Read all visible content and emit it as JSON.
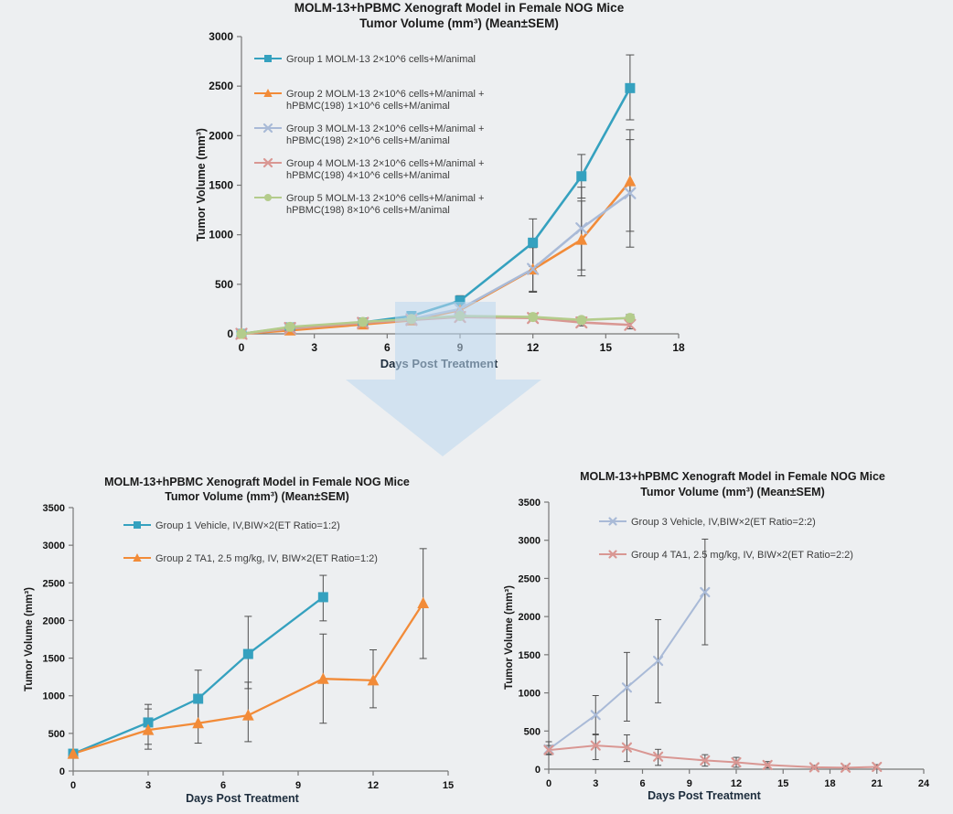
{
  "figure": {
    "description_arrow": "down-arrow",
    "background": "#edeff1"
  },
  "colors": {
    "teal": "#35a1bf",
    "orange": "#f28b38",
    "blue_gray": "#a9bad7",
    "pink": "#d99793",
    "green": "#b4cc8c",
    "error_bar": "#4f4f4f",
    "axis": "#777777",
    "title_text": "#1a1a1a",
    "tick_text": "#111111",
    "axis_label_text": "#1d2d3d",
    "legend_text": "#3d3d3d",
    "arrow_fill": "#bcd7ee"
  },
  "arrow": {
    "shape": "down-arrow",
    "fill": "#bcd7ee",
    "opacity": 0.55
  },
  "chart_data": [
    {
      "type": "line",
      "title": [
        "MOLM-13+hPBMC Xenograft Model in Female NOG Mice",
        "Tumor Volume (mm³) (Mean±SEM)"
      ],
      "xlabel": "Days Post Treatment",
      "ylabel": "Tumor Volume (mm³)",
      "xlim": [
        0,
        18
      ],
      "ylim": [
        0,
        3000
      ],
      "xticks": [
        0,
        3,
        6,
        9,
        12,
        15,
        18
      ],
      "yticks": [
        0,
        500,
        1000,
        1500,
        2000,
        2500,
        3000
      ],
      "grid": false,
      "legend_position": "upper-left",
      "error_bars": "SEM",
      "series": [
        {
          "name": [
            "Group 1 MOLM-13  2×10^6 cells+M/animal"
          ],
          "color_key": "teal",
          "marker": "square",
          "x": [
            0,
            2,
            5,
            7,
            9,
            12,
            14,
            16
          ],
          "y": [
            0,
            65,
            115,
            180,
            335,
            920,
            1590,
            2480
          ],
          "err_lo": [
            null,
            null,
            null,
            null,
            290,
            680,
            1370,
            2160
          ],
          "err_hi": [
            null,
            null,
            null,
            null,
            385,
            1160,
            1810,
            2815
          ]
        },
        {
          "name": [
            "Group 2 MOLM-13  2×10^6 cells+M/animal +",
            "hPBMC(198) 1×10^6 cells+M/animal"
          ],
          "color_key": "orange",
          "marker": "triangle",
          "x": [
            0,
            2,
            5,
            7,
            9,
            12,
            14,
            16
          ],
          "y": [
            0,
            35,
            95,
            135,
            240,
            650,
            950,
            1540
          ],
          "err_lo": [
            null,
            null,
            null,
            null,
            205,
            430,
            585,
            1035
          ],
          "err_hi": [
            null,
            null,
            null,
            null,
            280,
            870,
            1340,
            2060
          ]
        },
        {
          "name": [
            "Group 3 MOLM-13  2×10^6 cells+M/animal +",
            "hPBMC(198) 2×10^6 cells+M/animal"
          ],
          "color_key": "blue_gray",
          "marker": "x",
          "x": [
            0,
            2,
            5,
            7,
            9,
            12,
            14,
            16
          ],
          "y": [
            0,
            55,
            110,
            150,
            250,
            655,
            1065,
            1420
          ],
          "err_lo": [
            null,
            null,
            null,
            null,
            215,
            420,
            645,
            875
          ],
          "err_hi": [
            null,
            null,
            null,
            null,
            290,
            890,
            1480,
            1960
          ]
        },
        {
          "name": [
            "Group 4 MOLM-13  2×10^6 cells+M/animal +",
            "hPBMC(198) 4×10^6 cells+M/animal"
          ],
          "color_key": "pink",
          "marker": "x",
          "x": [
            0,
            2,
            5,
            7,
            9,
            12,
            14,
            16
          ],
          "y": [
            0,
            60,
            110,
            140,
            170,
            160,
            115,
            90
          ],
          "err_lo": [
            null,
            null,
            null,
            null,
            140,
            130,
            80,
            50
          ],
          "err_hi": [
            null,
            null,
            null,
            null,
            200,
            195,
            150,
            130
          ]
        },
        {
          "name": [
            "Group 5 MOLM-13  2×10^6 cells+M/animal +",
            "hPBMC(198) 8×10^6 cells+M/animal"
          ],
          "color_key": "green",
          "marker": "circle",
          "x": [
            0,
            2,
            5,
            7,
            9,
            12,
            14,
            16
          ],
          "y": [
            0,
            70,
            120,
            150,
            180,
            170,
            140,
            160
          ],
          "err_lo": [
            null,
            null,
            null,
            null,
            150,
            140,
            110,
            125
          ],
          "err_hi": [
            null,
            null,
            null,
            null,
            210,
            205,
            170,
            195
          ]
        }
      ]
    },
    {
      "type": "line",
      "title": [
        "MOLM-13+hPBMC Xenograft Model in Female NOG Mice",
        "Tumor Volume (mm³) (Mean±SEM)"
      ],
      "xlabel": "Days Post Treatment",
      "ylabel": "Tumor Volume (mm³)",
      "xlim": [
        0,
        15
      ],
      "ylim": [
        0,
        3500
      ],
      "xticks": [
        0,
        3,
        6,
        9,
        12,
        15
      ],
      "yticks": [
        0,
        500,
        1000,
        1500,
        2000,
        2500,
        3000,
        3500
      ],
      "grid": false,
      "legend_position": "upper-left",
      "error_bars": "SEM",
      "series": [
        {
          "name": [
            "Group 1 Vehicle, IV,BIW×2(ET Ratio=1:2)"
          ],
          "color_key": "teal",
          "marker": "square",
          "x": [
            0,
            3,
            5,
            7,
            10
          ],
          "y": [
            230,
            645,
            960,
            1555,
            2310
          ],
          "err_lo": [
            195,
            355,
            590,
            1095,
            1995
          ],
          "err_hi": [
            270,
            885,
            1340,
            2055,
            2600
          ]
        },
        {
          "name": [
            "Group 2 TA1, 2.5 mg/kg, IV, BIW×2(ET Ratio=1:2)"
          ],
          "color_key": "orange",
          "marker": "triangle",
          "x": [
            0,
            3,
            5,
            7,
            10,
            12,
            14
          ],
          "y": [
            230,
            545,
            635,
            740,
            1225,
            1205,
            2230
          ],
          "err_lo": [
            195,
            290,
            370,
            390,
            635,
            840,
            1495
          ],
          "err_hi": [
            270,
            825,
            900,
            1180,
            1820,
            1610,
            2955
          ]
        }
      ]
    },
    {
      "type": "line",
      "title": [
        "MOLM-13+hPBMC Xenograft Model in Female NOG Mice",
        "Tumor Volume (mm³) (Mean±SEM)"
      ],
      "xlabel": "Days Post Treatment",
      "ylabel": "Tumor Volume (mm³)",
      "xlim": [
        0,
        24
      ],
      "ylim": [
        0,
        3500
      ],
      "xticks": [
        0,
        3,
        6,
        9,
        12,
        15,
        18,
        21,
        24
      ],
      "yticks": [
        0,
        500,
        1000,
        1500,
        2000,
        2500,
        3000,
        3500
      ],
      "grid": false,
      "legend_position": "upper-left",
      "error_bars": "SEM",
      "series": [
        {
          "name": [
            "Group 3 Vehicle, IV,BIW×2(ET Ratio=2:2)"
          ],
          "color_key": "blue_gray",
          "marker": "x",
          "x": [
            0,
            3,
            5,
            7,
            10
          ],
          "y": [
            260,
            710,
            1070,
            1420,
            2320
          ],
          "err_lo": [
            200,
            450,
            630,
            870,
            1630
          ],
          "err_hi": [
            360,
            965,
            1530,
            1960,
            3015
          ]
        },
        {
          "name": [
            "Group 4 TA1, 2.5 mg/kg, IV, BIW×2(ET Ratio=2:2)"
          ],
          "color_key": "pink",
          "marker": "x",
          "x": [
            0,
            3,
            5,
            7,
            10,
            12,
            14,
            17,
            19,
            21
          ],
          "y": [
            250,
            310,
            285,
            165,
            115,
            90,
            55,
            25,
            20,
            30
          ],
          "err_lo": [
            190,
            125,
            100,
            50,
            40,
            25,
            18,
            10,
            8,
            12
          ],
          "err_hi": [
            310,
            460,
            450,
            260,
            190,
            155,
            100,
            50,
            45,
            60
          ]
        }
      ]
    }
  ]
}
